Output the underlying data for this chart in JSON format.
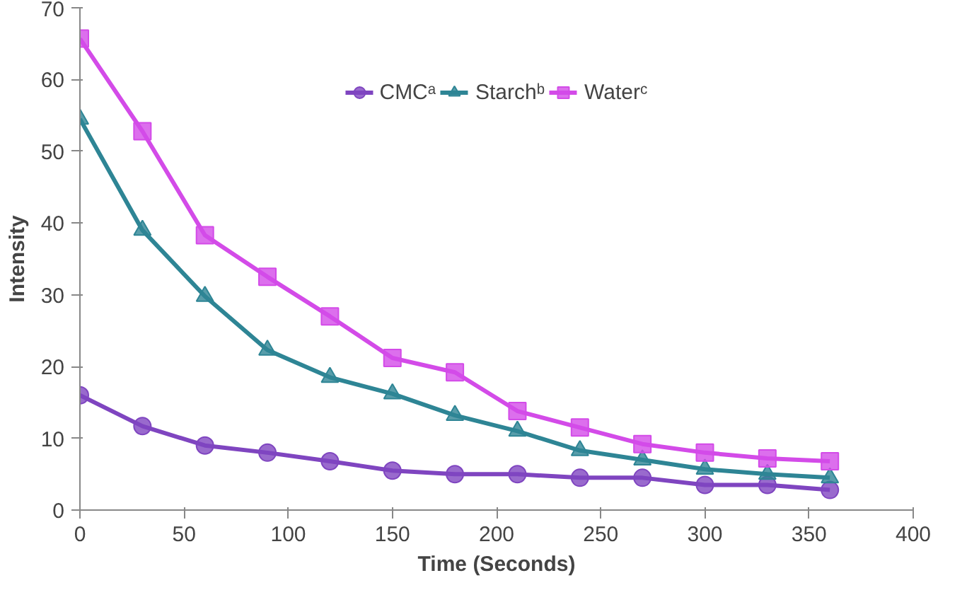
{
  "chart_data": {
    "type": "line",
    "xlabel": "Time (Seconds)",
    "ylabel": "Intensity",
    "x": [
      0,
      30,
      60,
      90,
      120,
      150,
      180,
      210,
      240,
      270,
      300,
      330,
      360
    ],
    "series": [
      {
        "name": "CMCᵃ",
        "color": "#7f45c0",
        "marker": "circle",
        "values": [
          16,
          11.7,
          9,
          8,
          6.8,
          5.5,
          5,
          5,
          4.5,
          4.5,
          3.5,
          3.5,
          2.8
        ]
      },
      {
        "name": "Starchᵇ",
        "color": "#2e8595",
        "marker": "triangle",
        "values": [
          54.5,
          39,
          29.8,
          22.3,
          18.5,
          16.2,
          13.2,
          11,
          8.3,
          7,
          5.7,
          5,
          4.5
        ]
      },
      {
        "name": "Waterᶜ",
        "color": "#d34be8",
        "marker": "square",
        "values": [
          65.7,
          52.8,
          38.3,
          32.5,
          27,
          21.2,
          19.2,
          13.8,
          11.5,
          9.2,
          8,
          7.2,
          6.8
        ]
      }
    ],
    "xlim": [
      0,
      400
    ],
    "xticks": [
      0,
      50,
      100,
      150,
      200,
      250,
      300,
      350,
      400
    ],
    "ylim": [
      0,
      70
    ],
    "yticks": [
      0,
      10,
      20,
      30,
      40,
      50,
      60,
      70
    ],
    "grid": false,
    "legend": "top",
    "line_style": "solid"
  }
}
